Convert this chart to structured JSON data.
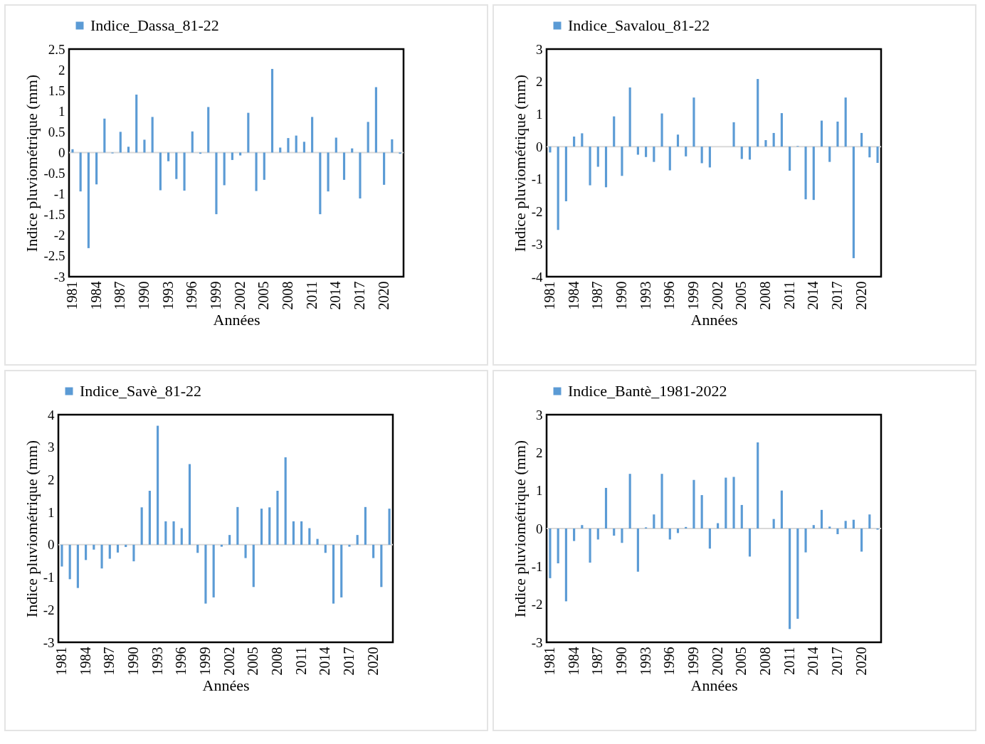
{
  "chart_data": [
    {
      "type": "bar",
      "categories": [
        "1981",
        null,
        null,
        "1984",
        null,
        null,
        "1987",
        null,
        null,
        "1990",
        null,
        null,
        "1993",
        null,
        null,
        "1996",
        null,
        null,
        "1999",
        null,
        null,
        "2002",
        null,
        null,
        "2005",
        null,
        null,
        "2008",
        null,
        null,
        "2011",
        null,
        null,
        "2014",
        null,
        null,
        "2017",
        null,
        null,
        "2020",
        null,
        null
      ],
      "series": [
        {
          "name": "Indice_Dassa_81-22",
          "color": "#5b9bd5",
          "values": [
            0.08,
            -0.94,
            -2.31,
            -0.77,
            0.82,
            -0.02,
            0.5,
            0.14,
            1.4,
            0.31,
            0.86,
            -0.91,
            -0.21,
            -0.64,
            -0.92,
            0.51,
            -0.03,
            1.1,
            -1.49,
            -0.79,
            -0.18,
            -0.07,
            0.96,
            -0.93,
            -0.66,
            2.02,
            0.12,
            0.35,
            0.41,
            0.26,
            0.86,
            -1.49,
            -0.94,
            0.36,
            -0.66,
            0.1,
            -1.11,
            0.74,
            1.58,
            -0.78,
            0.32,
            -0.03
          ]
        }
      ],
      "xlabel": "Années",
      "ylabel": "Indice pluviométrique (mm)",
      "ylim": [
        -3,
        2.5
      ],
      "yticks": [
        -3,
        -2.5,
        -2,
        -1.5,
        -1,
        -0.5,
        0,
        0.5,
        1,
        1.5,
        2,
        2.5
      ],
      "legend": "top",
      "ref_lines": [
        {
          "axis": "y",
          "value": 0,
          "color": "#d9d9d9"
        }
      ]
    },
    {
      "type": "bar",
      "categories": [
        "1981",
        null,
        null,
        "1984",
        null,
        null,
        "1987",
        null,
        null,
        "1990",
        null,
        null,
        "1993",
        null,
        null,
        "1996",
        null,
        null,
        "1999",
        null,
        null,
        "2002",
        null,
        null,
        "2005",
        null,
        null,
        "2008",
        null,
        null,
        "2011",
        null,
        null,
        "2014",
        null,
        null,
        "2017",
        null,
        null,
        "2020",
        null,
        null
      ],
      "series": [
        {
          "name": "Indice_Savalou_81-22",
          "color": "#5b9bd5",
          "values": [
            -0.18,
            -2.56,
            -1.68,
            0.31,
            0.41,
            -1.19,
            -0.62,
            -1.25,
            0.93,
            -0.9,
            1.82,
            -0.25,
            -0.32,
            -0.47,
            1.02,
            -0.73,
            0.37,
            -0.3,
            1.51,
            -0.51,
            -0.64,
            0,
            0,
            0.75,
            -0.38,
            -0.4,
            2.08,
            0.2,
            0.42,
            1.03,
            -0.74,
            0.02,
            -1.62,
            -1.64,
            0.8,
            -0.47,
            0.77,
            1.51,
            -3.43,
            0.42,
            -0.33,
            -0.5
          ]
        }
      ],
      "xlabel": "Années",
      "ylabel": "Indice pluviométrique (mm)",
      "ylim": [
        -4,
        3
      ],
      "yticks": [
        -4,
        -3,
        -2,
        -1,
        0,
        1,
        2,
        3
      ],
      "legend": "top",
      "ref_lines": [
        {
          "axis": "y",
          "value": 0,
          "color": "#d9d9d9"
        }
      ]
    },
    {
      "type": "bar",
      "categories": [
        "1981",
        null,
        null,
        "1984",
        null,
        null,
        "1987",
        null,
        null,
        "1990",
        null,
        null,
        "1993",
        null,
        null,
        "1996",
        null,
        null,
        "1999",
        null,
        null,
        "2002",
        null,
        null,
        "2005",
        null,
        null,
        "2008",
        null,
        null,
        "2011",
        null,
        null,
        "2014",
        null,
        null,
        "2017",
        null,
        null,
        "2020",
        null,
        null
      ],
      "series": [
        {
          "name": "Indice_Savè_81-22",
          "color": "#5b9bd5",
          "values": [
            -0.67,
            -1.06,
            -1.33,
            -0.47,
            -0.15,
            -0.73,
            -0.43,
            -0.24,
            -0.07,
            -0.51,
            1.15,
            1.66,
            3.66,
            0.72,
            0.72,
            0.51,
            2.48,
            -0.25,
            -1.81,
            -1.62,
            -0.06,
            0.3,
            1.16,
            -0.41,
            -1.3,
            1.11,
            1.15,
            1.66,
            2.69,
            0.72,
            0.72,
            0.51,
            0.18,
            -0.25,
            -1.81,
            -1.62,
            -0.06,
            0.3,
            1.16,
            -0.41,
            -1.3,
            1.11
          ]
        }
      ],
      "xlabel": "Années",
      "ylabel": "Indice pluviométrique (mm)",
      "ylim": [
        -3,
        4
      ],
      "yticks": [
        -3,
        -2,
        -1,
        0,
        1,
        2,
        3,
        4
      ],
      "legend": "top",
      "ref_lines": [
        {
          "axis": "y",
          "value": 0,
          "color": "#d9d9d9"
        }
      ]
    },
    {
      "type": "bar",
      "categories": [
        "1981",
        null,
        null,
        "1984",
        null,
        null,
        "1987",
        null,
        null,
        "1990",
        null,
        null,
        "1993",
        null,
        null,
        "1996",
        null,
        null,
        "1999",
        null,
        null,
        "2002",
        null,
        null,
        "2005",
        null,
        null,
        "2008",
        null,
        null,
        "2011",
        null,
        null,
        "2014",
        null,
        null,
        "2017",
        null,
        null,
        "2020",
        null,
        null
      ],
      "series": [
        {
          "name": "Indice_Bantè_1981-2022",
          "color": "#5b9bd5",
          "values": [
            -1.31,
            -0.92,
            -1.92,
            -0.33,
            0.09,
            -0.9,
            -0.29,
            1.07,
            -0.19,
            -0.38,
            1.44,
            -1.14,
            0.03,
            0.37,
            1.44,
            -0.29,
            -0.12,
            0.04,
            1.28,
            0.88,
            -0.53,
            0.14,
            1.34,
            1.36,
            0.62,
            -0.74,
            2.27,
            0,
            0.25,
            1.0,
            -2.65,
            -2.38,
            -0.63,
            0.09,
            0.49,
            0.05,
            -0.15,
            0.2,
            0.23,
            -0.61,
            0.37,
            -0.03
          ]
        }
      ],
      "xlabel": "Années",
      "ylabel": "Indice pluviométrique (mm)",
      "ylim": [
        -3,
        3
      ],
      "yticks": [
        -3,
        -2,
        -1,
        0,
        1,
        2,
        3
      ],
      "legend": "top",
      "ref_lines": [
        {
          "axis": "y",
          "value": 0,
          "color": "#d9d9d9"
        }
      ]
    }
  ]
}
